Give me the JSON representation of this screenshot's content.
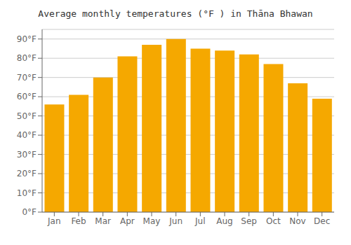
{
  "chart_data": {
    "type": "bar",
    "title": "Average monthly temperatures (°F ) in Thāna Bhawan",
    "categories": [
      "Jan",
      "Feb",
      "Mar",
      "Apr",
      "May",
      "Jun",
      "Jul",
      "Aug",
      "Sep",
      "Oct",
      "Nov",
      "Dec"
    ],
    "values": [
      56,
      61,
      70,
      81,
      87,
      90,
      85,
      84,
      82,
      77,
      67,
      59
    ],
    "color": "#F5A800",
    "ylim": [
      0,
      95
    ],
    "yticks": [
      {
        "value": 0,
        "label": "0°F"
      },
      {
        "value": 10,
        "label": "10°F"
      },
      {
        "value": 20,
        "label": "20°F"
      },
      {
        "value": 30,
        "label": "30°F"
      },
      {
        "value": 40,
        "label": "40°F"
      },
      {
        "value": 50,
        "label": "50°F"
      },
      {
        "value": 60,
        "label": "60°F"
      },
      {
        "value": 70,
        "label": "70°F"
      },
      {
        "value": 80,
        "label": "80°F"
      },
      {
        "value": 90,
        "label": "90°F"
      }
    ],
    "grid": true
  }
}
